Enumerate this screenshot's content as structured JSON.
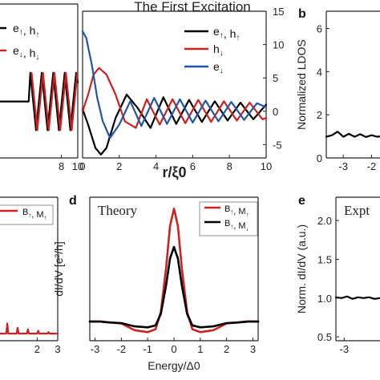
{
  "figure": {
    "panel_a_title": "The First Excitation",
    "panel_letters": {
      "b": "b",
      "d": "d",
      "e": "e"
    }
  },
  "chart_data": [
    {
      "id": "a-left",
      "type": "line",
      "xlim": [
        0,
        10
      ],
      "x_ticks": [
        {
          "v": 8,
          "label": "8"
        },
        {
          "v": 10,
          "label": "10"
        }
      ],
      "legend": [
        "e↑, h↑",
        "e↓, h↓"
      ],
      "series": [
        {
          "name": "e↑, h↑",
          "color": "#000000",
          "x": [
            0,
            2,
            4,
            4.2,
            4.9,
            5.6,
            6.3,
            7.0,
            7.7,
            8.4,
            9.1,
            9.8,
            10
          ],
          "y": [
            0,
            0,
            0,
            0.6,
            -0.6,
            0.6,
            -0.6,
            0.6,
            -0.6,
            0.6,
            -0.6,
            0.6,
            0.4
          ]
        },
        {
          "name": "e↓, h↓",
          "color": "#cc2222",
          "x": [
            4.35,
            5.05,
            5.75,
            6.45,
            7.15,
            7.85,
            8.55,
            9.25,
            9.95
          ],
          "y": [
            0.6,
            -0.6,
            0.6,
            -0.6,
            0.6,
            -0.6,
            0.6,
            -0.6,
            0.6
          ]
        }
      ]
    },
    {
      "id": "a-main",
      "type": "line",
      "xlabel": "r/ξ0",
      "xlim": [
        0,
        10
      ],
      "ylim": [
        -7,
        15
      ],
      "x_ticks": [
        0,
        2,
        4,
        6,
        8,
        10
      ],
      "y_ticks": [
        -5,
        0,
        5,
        10,
        15
      ],
      "legend": [
        "e↑, h↑",
        "h↓",
        "e↓"
      ],
      "series": [
        {
          "name": "e↑, h↑",
          "color": "#000000",
          "x": [
            0,
            0.3,
            0.7,
            1.0,
            1.3,
            1.8,
            2.4,
            3.0,
            3.7,
            4.4,
            5.1,
            5.8,
            6.5,
            7.2,
            7.9,
            8.6,
            9.3,
            10
          ],
          "y": [
            0.3,
            -2,
            -5.5,
            -6.5,
            -5.5,
            -1,
            2.5,
            0.5,
            -2.5,
            2.1,
            -1.9,
            1.7,
            -1.6,
            1.5,
            -1.4,
            1.3,
            -1.2,
            1.0
          ]
        },
        {
          "name": "h↓",
          "color": "#cc2222",
          "x": [
            0,
            0.3,
            0.6,
            0.9,
            1.3,
            1.8,
            2.3,
            2.9,
            3.5,
            4.2,
            4.9,
            5.6,
            6.3,
            7.0,
            7.7,
            8.4,
            9.1,
            9.8,
            10
          ],
          "y": [
            0,
            2.5,
            5.5,
            6.5,
            5.5,
            2.5,
            -1.5,
            -2.5,
            1.8,
            -2.0,
            1.8,
            -1.8,
            1.7,
            -1.6,
            1.5,
            -1.4,
            1.3,
            -1.2,
            -1.0
          ]
        },
        {
          "name": "e↓",
          "color": "#2255aa",
          "x": [
            0,
            0.2,
            0.5,
            0.8,
            1.1,
            1.5,
            2.0,
            2.6,
            3.2,
            3.9,
            4.6,
            5.3,
            6.0,
            6.7,
            7.4,
            8.1,
            8.8,
            9.5,
            10
          ],
          "y": [
            12,
            11,
            7,
            2,
            -1.5,
            -4,
            -2,
            1.5,
            -2.2,
            2.0,
            -1.9,
            1.8,
            -1.7,
            1.6,
            -1.5,
            1.4,
            -1.3,
            1.2,
            0.6
          ]
        }
      ]
    },
    {
      "id": "b",
      "type": "line",
      "ylabel": "Normalized LDOS",
      "xlim": [
        -3.6,
        -1.7
      ],
      "ylim": [
        0,
        6.8
      ],
      "x_ticks": [
        {
          "v": -3,
          "label": "-3"
        },
        {
          "v": -2,
          "label": "-2"
        }
      ],
      "y_ticks": [
        0,
        2,
        4,
        6
      ],
      "series": [
        {
          "name": "",
          "color": "#000000",
          "x": [
            -3.6,
            -3.4,
            -3.2,
            -3.0,
            -2.8,
            -2.6,
            -2.4,
            -2.2,
            -2.0,
            -1.8,
            -1.7
          ],
          "y": [
            0.98,
            1.05,
            1.22,
            0.98,
            1.12,
            0.98,
            1.1,
            0.97,
            1.05,
            0.98,
            1.0
          ]
        }
      ]
    },
    {
      "id": "c",
      "type": "line",
      "xlim": [
        0,
        3
      ],
      "ylim": [
        0,
        1
      ],
      "x_ticks": [
        {
          "v": 2,
          "label": "2"
        },
        {
          "v": 3,
          "label": "3"
        }
      ],
      "legend": [
        "B↑, M↑"
      ],
      "series": [
        {
          "name": "B↑, M↑",
          "color": "#cc2222",
          "x": [
            0,
            0.5,
            0.55,
            0.6,
            1.0,
            1.05,
            1.1,
            1.5,
            1.55,
            1.6,
            2.0,
            2.05,
            2.1,
            2.5,
            2.55,
            2.6,
            3.0
          ],
          "y": [
            0.05,
            0.05,
            0.12,
            0.05,
            0.05,
            0.09,
            0.05,
            0.05,
            0.08,
            0.05,
            0.05,
            0.07,
            0.05,
            0.05,
            0.06,
            0.05,
            0.05
          ]
        }
      ]
    },
    {
      "id": "d",
      "type": "line",
      "annotation": "Theory",
      "xlabel": "Energy/Δ0",
      "ylabel": "dI/dV [e²/h]",
      "xlim": [
        -3.2,
        3.2
      ],
      "ylim": [
        0,
        7.5
      ],
      "x_ticks": [
        -3,
        -2,
        -1,
        0,
        1,
        2,
        3
      ],
      "legend": [
        "B↑, M↑",
        "B↑, M↓"
      ],
      "series": [
        {
          "name": "B↑, M↑",
          "color": "#cc2222",
          "x": [
            -3.2,
            -2.8,
            -2.4,
            -2.0,
            -1.5,
            -1.0,
            -0.7,
            -0.5,
            -0.3,
            -0.15,
            0,
            0.15,
            0.3,
            0.5,
            0.7,
            1.0,
            1.5,
            2.0,
            2.4,
            2.8,
            3.2
          ],
          "y": [
            1.0,
            1.0,
            0.95,
            0.9,
            0.55,
            0.45,
            0.6,
            1.5,
            3.8,
            6.0,
            6.9,
            6.0,
            3.8,
            1.5,
            0.6,
            0.45,
            0.55,
            0.9,
            0.95,
            1.0,
            1.0
          ]
        },
        {
          "name": "B↑, M↓",
          "color": "#000000",
          "x": [
            -3.2,
            -2.8,
            -2.4,
            -2.0,
            -1.5,
            -1.0,
            -0.7,
            -0.5,
            -0.3,
            -0.15,
            0,
            0.15,
            0.3,
            0.5,
            0.7,
            1.0,
            1.5,
            2.0,
            2.4,
            2.8,
            3.2
          ],
          "y": [
            1.0,
            1.0,
            0.95,
            0.92,
            0.75,
            0.7,
            0.8,
            1.4,
            2.9,
            4.3,
            4.9,
            4.3,
            2.9,
            1.4,
            0.8,
            0.7,
            0.75,
            0.92,
            0.95,
            1.0,
            1.0
          ]
        }
      ]
    },
    {
      "id": "e",
      "type": "line",
      "annotation": "Expt",
      "ylabel": "Norm. dI/dV (a.u.)",
      "xlim": [
        -3.3,
        -1.7
      ],
      "ylim": [
        0.45,
        2.3
      ],
      "x_ticks": [
        {
          "v": -3,
          "label": "-3"
        }
      ],
      "y_ticks": [
        0.5,
        1.0,
        1.5,
        2.0
      ],
      "series": [
        {
          "name": "",
          "color": "#000000",
          "x": [
            -3.3,
            -3.1,
            -2.9,
            -2.7,
            -2.5,
            -2.3,
            -2.1,
            -1.9,
            -1.7
          ],
          "y": [
            1.01,
            1.0,
            1.02,
            0.99,
            1.01,
            1.0,
            1.01,
            0.99,
            1.0
          ]
        }
      ]
    }
  ]
}
